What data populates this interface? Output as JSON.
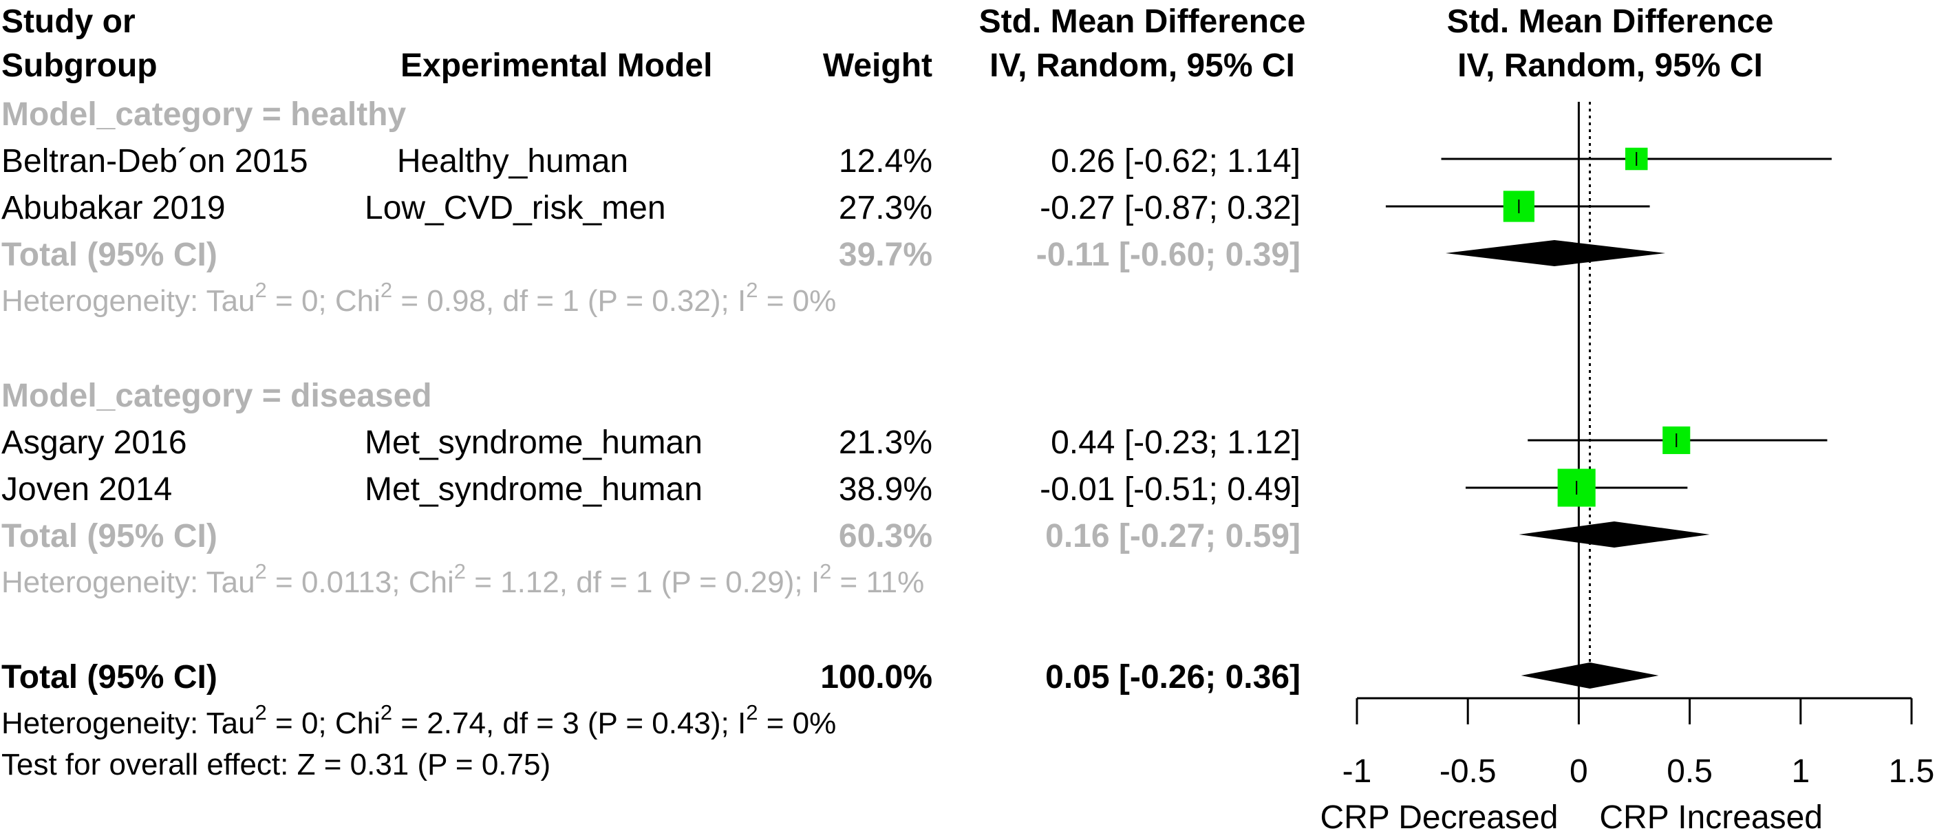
{
  "header": {
    "study_line1": "Study or",
    "study_line2": "Subgroup",
    "model": "Experimental Model",
    "weight": "Weight",
    "smd_line1": "Std. Mean Difference",
    "smd_line2": "IV, Random, 95% CI",
    "plot_line1": "Std. Mean Difference",
    "plot_line2": "IV, Random, 95% CI"
  },
  "subgroups": [
    {
      "title": "Model_category = healthy",
      "studies": [
        {
          "study": "Beltran-Deb´on 2015",
          "model": "Healthy_human",
          "weight": "12.4%",
          "ci_text": "0.26 [-0.62; 1.14]"
        },
        {
          "study": "Abubakar 2019",
          "model": "Low_CVD_risk_men",
          "weight": "27.3%",
          "ci_text": "-0.27 [-0.87; 0.32]"
        }
      ],
      "total": {
        "label": "Total (95% CI)",
        "weight": "39.7%",
        "ci_text": "-0.11 [-0.60; 0.39]"
      },
      "het": {
        "p1": "Heterogeneity: Tau",
        "sq1": "2",
        "p2": " = 0; Chi",
        "sq2": "2",
        "p3": " = 0.98, df = 1 (P = 0.32); I",
        "sq3": "2",
        "p4": " = 0%"
      }
    },
    {
      "title": "Model_category = diseased",
      "studies": [
        {
          "study": "Asgary 2016",
          "model": "Met_syndrome_human",
          "weight": "21.3%",
          "ci_text": "0.44 [-0.23; 1.12]"
        },
        {
          "study": "Joven 2014",
          "model": "Met_syndrome_human",
          "weight": "38.9%",
          "ci_text": "-0.01 [-0.51; 0.49]"
        }
      ],
      "total": {
        "label": "Total (95% CI)",
        "weight": "60.3%",
        "ci_text": "0.16 [-0.27; 0.59]"
      },
      "het": {
        "p1": "Heterogeneity: Tau",
        "sq1": "2",
        "p2": " = 0.0113; Chi",
        "sq2": "2",
        "p3": " = 1.12, df = 1 (P = 0.29); I",
        "sq3": "2",
        "p4": " = 11%"
      }
    }
  ],
  "overall": {
    "label": "Total (95% CI)",
    "weight": "100.0%",
    "ci_text": "0.05 [-0.26; 0.36]",
    "het": {
      "p1": "Heterogeneity: Tau",
      "sq1": "2",
      "p2": " = 0; Chi",
      "sq2": "2",
      "p3": " = 2.74, df = 3 (P = 0.43); I",
      "sq3": "2",
      "p4": " = 0%"
    },
    "test": "Test for overall effect: Z = 0.31 (P = 0.75)"
  },
  "colors": {
    "box": "#00ee00",
    "diamond": "#000000",
    "grey_text": "#b3b3b3"
  },
  "chart_data": {
    "type": "forest",
    "xlim": [
      -1,
      1.5
    ],
    "ticks": [
      -1,
      -0.5,
      0,
      0.5,
      1,
      1.5
    ],
    "tick_labels": [
      "-1",
      "-0.5",
      "0",
      "0.5",
      "1",
      "1.5"
    ],
    "xlabel_left": "CRP Decreased",
    "xlabel_right": "CRP Increased",
    "reference_line": 0,
    "overall_line": 0.05,
    "studies": [
      {
        "study": "Beltran-Deb´on 2015",
        "est": 0.26,
        "lo": -0.62,
        "hi": 1.14,
        "weight": 12.4
      },
      {
        "study": "Abubakar 2019",
        "est": -0.27,
        "lo": -0.87,
        "hi": 0.32,
        "weight": 27.3
      },
      {
        "study": "Asgary 2016",
        "est": 0.44,
        "lo": -0.23,
        "hi": 1.12,
        "weight": 21.3
      },
      {
        "study": "Joven 2014",
        "est": -0.01,
        "lo": -0.51,
        "hi": 0.49,
        "weight": 38.9
      }
    ],
    "subtotals": [
      {
        "name": "healthy",
        "est": -0.11,
        "lo": -0.6,
        "hi": 0.39
      },
      {
        "name": "diseased",
        "est": 0.16,
        "lo": -0.27,
        "hi": 0.59
      }
    ],
    "overall": {
      "est": 0.05,
      "lo": -0.26,
      "hi": 0.36
    }
  }
}
